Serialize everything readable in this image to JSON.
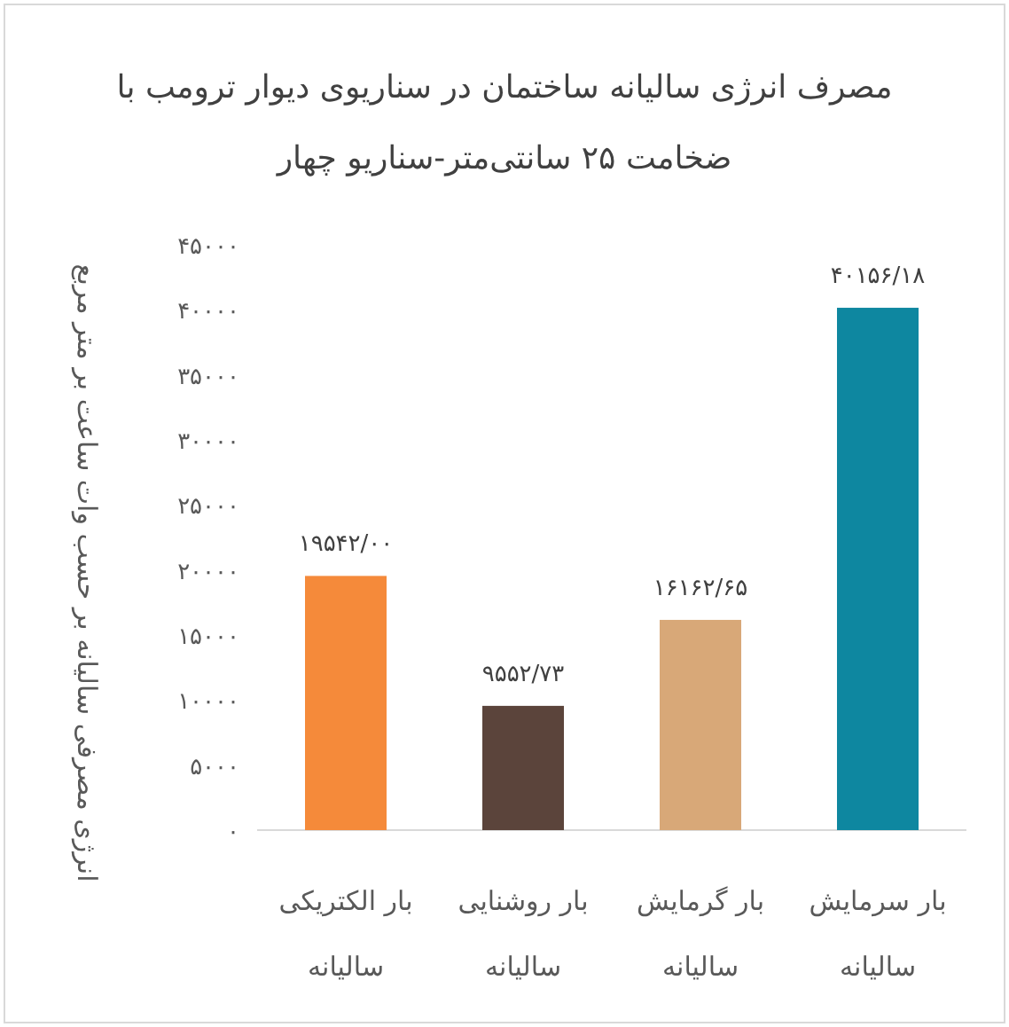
{
  "chart_data": {
    "type": "bar",
    "title": "مصرف انرژی سالیانه ساختمان در سناریوی دیوار ترومب با ضخامت ۲۵ سانتی‌متر-سناریو چهار",
    "ylabel": "انرژی مصرفی سالیانه بر حسب وات ساعت بر متر مربع",
    "categories": [
      "بار الکتریکی سالیانه",
      "بار روشنایی سالیانه",
      "بار گرمایش سالیانه",
      "بار سرمایش سالیانه"
    ],
    "values": [
      19542.0,
      9552.73,
      16162.65,
      40156.18
    ],
    "colors": [
      "#f58a3a",
      "#5b443b",
      "#d8a878",
      "#0e87a0"
    ],
    "value_labels": [
      "۱۹۵۴۲/۰۰",
      "۹۵۵۲/۷۳",
      "۱۶۱۶۲/۶۵",
      "۴۰۱۵۶/۱۸"
    ],
    "ylim": [
      0,
      45000
    ],
    "yticks": [
      {
        "value": 0,
        "label": "۰"
      },
      {
        "value": 5000,
        "label": "۵۰۰۰"
      },
      {
        "value": 10000,
        "label": "۱۰۰۰۰"
      },
      {
        "value": 15000,
        "label": "۱۵۰۰۰"
      },
      {
        "value": 20000,
        "label": "۲۰۰۰۰"
      },
      {
        "value": 25000,
        "label": "۲۵۰۰۰"
      },
      {
        "value": 30000,
        "label": "۳۰۰۰۰"
      },
      {
        "value": 35000,
        "label": "۳۵۰۰۰"
      },
      {
        "value": 40000,
        "label": "۴۰۰۰۰"
      },
      {
        "value": 45000,
        "label": "۴۵۰۰۰"
      }
    ],
    "grid": false
  }
}
